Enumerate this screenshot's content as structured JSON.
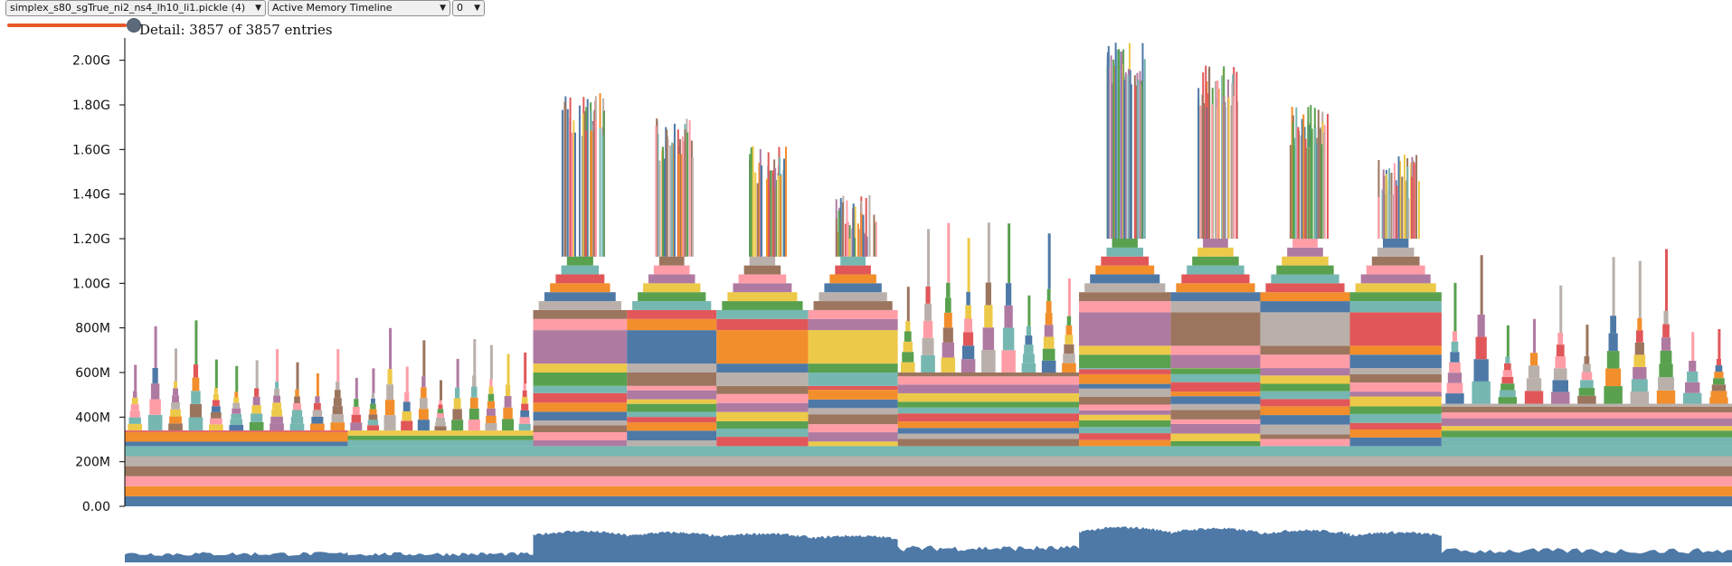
{
  "toolbar": {
    "file_select": "simplex_s80_sgTrue_ni2_ns4_lh10_li1.pickle (4)",
    "view_select": "Active Memory Timeline",
    "index_select": "0"
  },
  "detail": {
    "text": "Detail: 3857 of 3857 entries"
  },
  "chart_data": {
    "type": "area",
    "title": "",
    "xlabel": "",
    "ylabel": "",
    "ylim": [
      0,
      2.1
    ],
    "y_ticks": [
      "0.00",
      "200M",
      "400M",
      "600M",
      "800M",
      "1.00G",
      "1.20G",
      "1.40G",
      "1.60G",
      "1.80G",
      "2.00G"
    ],
    "y_tick_values": [
      0,
      0.2,
      0.4,
      0.6,
      0.8,
      1.0,
      1.2,
      1.4,
      1.6,
      1.8,
      2.0
    ],
    "x_range": [
      0,
      3857
    ],
    "total_entries": 3857,
    "palette": [
      "#4e79a7",
      "#f28e2c",
      "#e15759",
      "#76b7b2",
      "#59a14f",
      "#edc949",
      "#af7aa1",
      "#ff9da7",
      "#9c755f",
      "#bab0ab"
    ],
    "phases": [
      {
        "x0": 0,
        "x1": 535,
        "base": 0.34,
        "peak": 0.86,
        "style": "small"
      },
      {
        "x0": 535,
        "x1": 980,
        "base": 0.34,
        "peak": 0.82,
        "style": "small"
      },
      {
        "x0": 980,
        "x1": 1205,
        "base": 0.54,
        "peak": 1.86,
        "style": "big"
      },
      {
        "x0": 1205,
        "x1": 1420,
        "base": 0.54,
        "peak": 1.74,
        "style": "big"
      },
      {
        "x0": 1420,
        "x1": 1640,
        "base": 0.54,
        "peak": 1.62,
        "style": "big"
      },
      {
        "x0": 1640,
        "x1": 1855,
        "base": 0.54,
        "peak": 1.4,
        "style": "big"
      },
      {
        "x0": 1855,
        "x1": 2290,
        "base": 0.6,
        "peak": 1.3,
        "style": "mid"
      },
      {
        "x0": 2290,
        "x1": 2510,
        "base": 0.62,
        "peak": 2.08,
        "style": "big"
      },
      {
        "x0": 2510,
        "x1": 2725,
        "base": 0.62,
        "peak": 1.98,
        "style": "big"
      },
      {
        "x0": 2725,
        "x1": 2940,
        "base": 0.62,
        "peak": 1.8,
        "style": "big"
      },
      {
        "x0": 2940,
        "x1": 3160,
        "base": 0.62,
        "peak": 1.58,
        "style": "big"
      },
      {
        "x0": 3160,
        "x1": 3857,
        "base": 0.46,
        "peak": 1.16,
        "style": "small"
      }
    ],
    "base_layers": [
      {
        "value": 0.045,
        "color": "#4e79a7"
      },
      {
        "value": 0.045,
        "color": "#f28e2c"
      },
      {
        "value": 0.045,
        "color": "#ff9da7"
      },
      {
        "value": 0.045,
        "color": "#9c755f"
      },
      {
        "value": 0.045,
        "color": "#bab0ab"
      },
      {
        "value": 0.045,
        "color": "#76b7b2"
      }
    ]
  }
}
